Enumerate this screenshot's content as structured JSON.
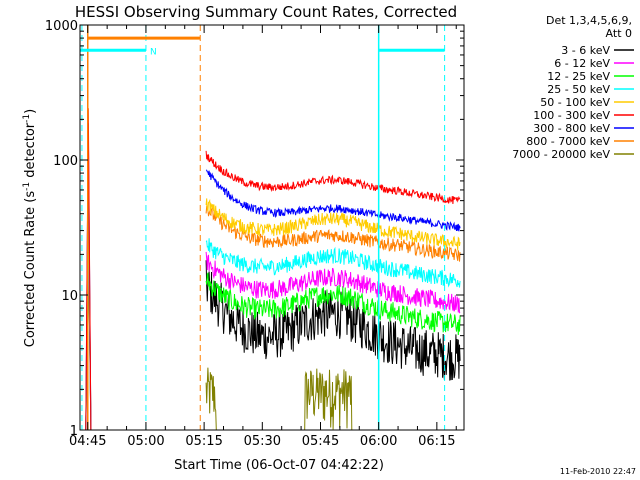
{
  "chart_data": {
    "type": "line",
    "title": "HESSI Observing Summary Count Rates, Corrected",
    "xlabel": "Start Time (06-Oct-07 04:42:22)",
    "ylabel_main": "Corrected Count Rate (s",
    "ylabel_sup1": "-1",
    "ylabel_mid": " detector",
    "ylabel_sup2": "-1",
    "ylabel_end": ")",
    "ylabel": "Corrected Count Rate (s-1 detector-1)",
    "yscale": "log",
    "ylim": [
      1,
      1000
    ],
    "xlim_minutes": [
      -2,
      97
    ],
    "x_ticks": [
      {
        "label": "04:45",
        "minutes": 0
      },
      {
        "label": "05:00",
        "minutes": 15
      },
      {
        "label": "05:15",
        "minutes": 30
      },
      {
        "label": "05:30",
        "minutes": 45
      },
      {
        "label": "05:45",
        "minutes": 60
      },
      {
        "label": "06:00",
        "minutes": 75
      },
      {
        "label": "06:15",
        "minutes": 90
      }
    ],
    "y_ticks": [
      {
        "label": "1",
        "value": 1
      },
      {
        "label": "10",
        "value": 10
      },
      {
        "label": "100",
        "value": 100
      },
      {
        "label": "1000",
        "value": 1000
      }
    ],
    "legend_header": [
      "Det 1,3,4,5,6,9,",
      "Att 0"
    ],
    "legend_position": "right",
    "series": [
      {
        "name": "3 - 6 keV",
        "color": "#000000",
        "start": 12,
        "end": 4,
        "bump": 1.8,
        "noise": 0.18
      },
      {
        "name": "6 - 12 keV",
        "color": "#ff00ff",
        "start": 18,
        "end": 10,
        "bump": 1.35,
        "noise": 0.07
      },
      {
        "name": "12 - 25 keV",
        "color": "#00ff00",
        "start": 13,
        "end": 7,
        "bump": 1.45,
        "noise": 0.08
      },
      {
        "name": "25 - 50 keV",
        "color": "#00ffff",
        "start": 24,
        "end": 15,
        "bump": 1.3,
        "noise": 0.06
      },
      {
        "name": "50 - 100 keV",
        "color": "#ffcc00",
        "start": 48,
        "end": 28,
        "bump": 1.3,
        "noise": 0.05
      },
      {
        "name": "100 - 300 keV",
        "color": "#ff0000",
        "start": 110,
        "end": 58,
        "bump": 1.22,
        "noise": 0.03
      },
      {
        "name": "300 - 800 keV",
        "color": "#0000ff",
        "start": 85,
        "end": 37,
        "bump": 1.18,
        "noise": 0.03
      },
      {
        "name": "800 - 7000 keV",
        "color": "#ff8000",
        "start": 45,
        "end": 23,
        "bump": 1.2,
        "noise": 0.05
      },
      {
        "name": "7000 - 20000 keV",
        "color": "#808000",
        "start": 2,
        "end": 1,
        "bump": 1.0,
        "noise": 0.3
      }
    ],
    "event_lines": [
      {
        "minutes": -1.5,
        "color": "#00ffff"
      },
      {
        "minutes": 15,
        "color": "#00ffff"
      },
      {
        "minutes": 29,
        "color": "#ff8000"
      },
      {
        "minutes": 75,
        "color": "#00ffff"
      },
      {
        "minutes": 92,
        "color": "#00ffff"
      }
    ],
    "flag_bars": [
      {
        "from_minutes": -2,
        "to_minutes": 15,
        "value": 650,
        "color": "#00ffff",
        "label": "N"
      },
      {
        "from_minutes": 75,
        "to_minutes": 92,
        "value": 650,
        "color": "#00ffff",
        "label": ""
      },
      {
        "from_minutes": 0,
        "to_minutes": 29,
        "value": 800,
        "color": "#ff8000",
        "label": ""
      }
    ],
    "annotation": "N",
    "timestamp": "11-Feb-2010 22:47"
  }
}
